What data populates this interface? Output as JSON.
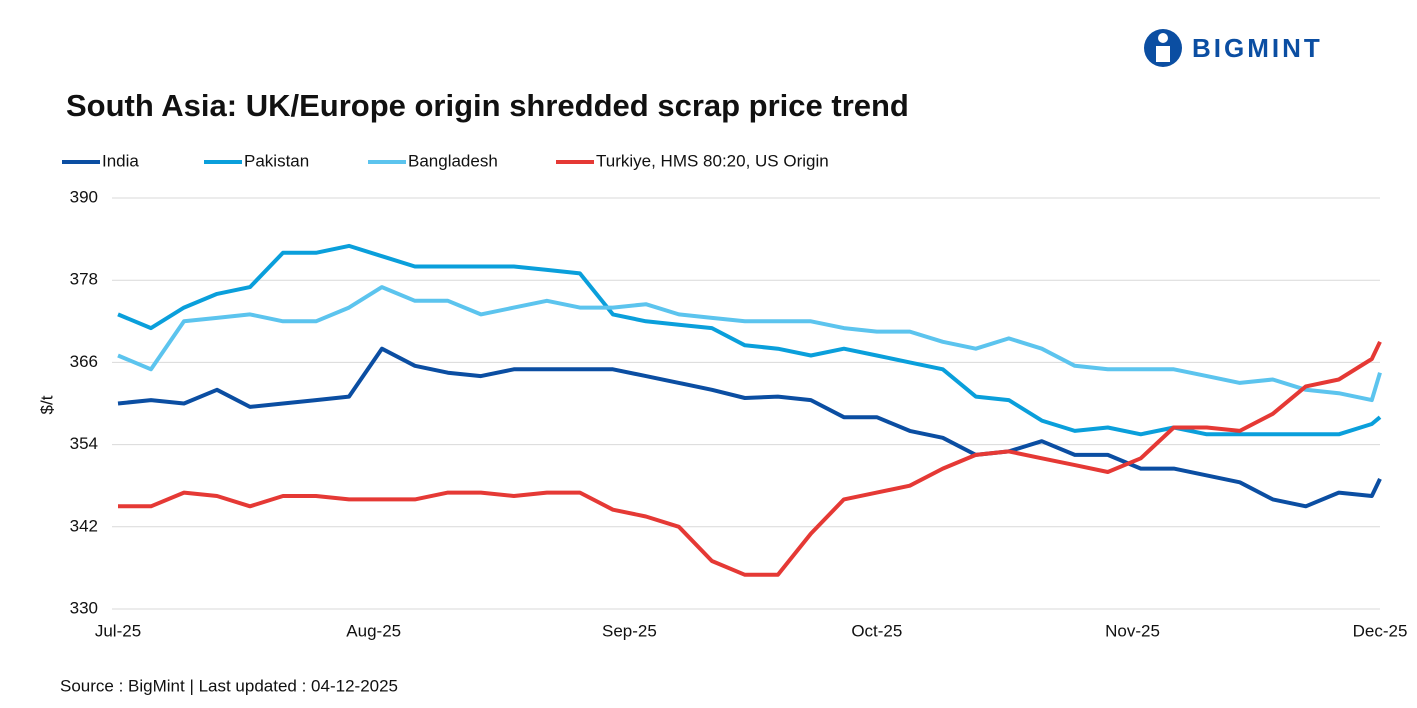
{
  "chart_data": {
    "type": "line",
    "logo": "BIGMINT",
    "title": "South Asia: UK/Europe origin shredded scrap price trend",
    "y_label": "$/t",
    "source": "Source : BigMint | Last updated : 04-12-2025",
    "xlim": [
      0,
      153
    ],
    "xticks": [
      {
        "value": 0,
        "label": "Jul-25"
      },
      {
        "value": 31,
        "label": "Aug-25"
      },
      {
        "value": 62,
        "label": "Sep-25"
      },
      {
        "value": 92,
        "label": "Oct-25"
      },
      {
        "value": 123,
        "label": "Nov-25"
      },
      {
        "value": 153,
        "label": "Dec-25"
      }
    ],
    "ylim": [
      330,
      390
    ],
    "yticks": [
      330,
      342,
      354,
      366,
      378,
      390
    ],
    "grid": true,
    "x": [
      0,
      4,
      8,
      12,
      16,
      20,
      24,
      28,
      32,
      36,
      40,
      44,
      48,
      52,
      56,
      60,
      64,
      68,
      72,
      76,
      80,
      84,
      88,
      92,
      96,
      100,
      104,
      108,
      112,
      116,
      120,
      124,
      128,
      132,
      136,
      140,
      144,
      148,
      152,
      153
    ],
    "series": [
      {
        "name": "India",
        "color": "#0b4ea2",
        "values": [
          360,
          360.5,
          360,
          362,
          359.5,
          360,
          360.5,
          361,
          368,
          365.5,
          364.5,
          364,
          365,
          365,
          365,
          365,
          364,
          363,
          362,
          360.8,
          361,
          360.5,
          358,
          358,
          356,
          355,
          352.5,
          353,
          354.5,
          352.5,
          352.5,
          350.5,
          350.5,
          349.5,
          348.5,
          346,
          345,
          347,
          346.5,
          349
        ]
      },
      {
        "name": "Pakistan",
        "color": "#0a9fdb",
        "values": [
          373,
          371,
          374,
          376,
          377,
          382,
          382,
          383,
          381.5,
          380,
          380,
          380,
          380,
          379.5,
          379,
          373,
          372,
          371.5,
          371,
          368.5,
          368,
          367,
          368,
          367,
          366,
          365,
          361,
          360.5,
          357.5,
          356,
          356.5,
          355.5,
          356.5,
          355.5,
          355.5,
          355.5,
          355.5,
          355.5,
          357,
          358
        ]
      },
      {
        "name": "Bangladesh",
        "color": "#5cc4ee",
        "values": [
          367,
          365,
          372,
          372.5,
          373,
          372,
          372,
          374,
          377,
          375,
          375,
          373,
          374,
          375,
          374,
          374,
          374.5,
          373,
          372.5,
          372,
          372,
          372,
          371,
          370.5,
          370.5,
          369,
          368,
          369.5,
          368,
          365.5,
          365,
          365,
          365,
          364,
          363,
          363.5,
          362,
          361.5,
          360.5,
          364.5
        ]
      },
      {
        "name": "Turkiye, HMS 80:20, US Origin",
        "color": "#e53935",
        "values": [
          345,
          345,
          347,
          346.5,
          345,
          346.5,
          346.5,
          346,
          346,
          346,
          347,
          347,
          346.5,
          347,
          347,
          344.5,
          343.5,
          342,
          337,
          335,
          335,
          341,
          346,
          347,
          348,
          350.5,
          352.5,
          353,
          352,
          351,
          350,
          352,
          356.5,
          356.5,
          356,
          358.5,
          362.5,
          363.5,
          366.5,
          369
        ]
      }
    ]
  }
}
